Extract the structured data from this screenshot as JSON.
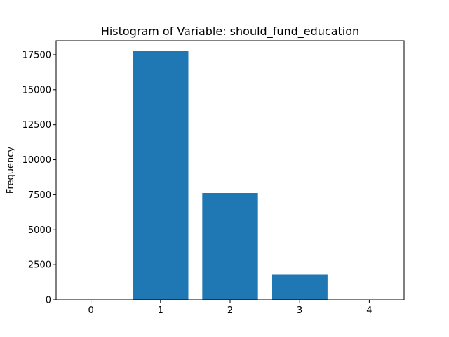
{
  "chart_data": {
    "type": "bar",
    "title": "Histogram of Variable: should_fund_education",
    "xlabel": "",
    "ylabel": "Frequency",
    "categories": [
      0,
      1,
      2,
      3,
      4
    ],
    "values": [
      0,
      17750,
      7620,
      1830,
      0
    ],
    "xlim": [
      -0.5,
      4.5
    ],
    "ylim": [
      0,
      18500
    ],
    "yticks": [
      0,
      2500,
      5000,
      7500,
      10000,
      12500,
      15000,
      17500
    ],
    "bar_color": "#1f77b4",
    "grid": false,
    "legend": "none"
  }
}
